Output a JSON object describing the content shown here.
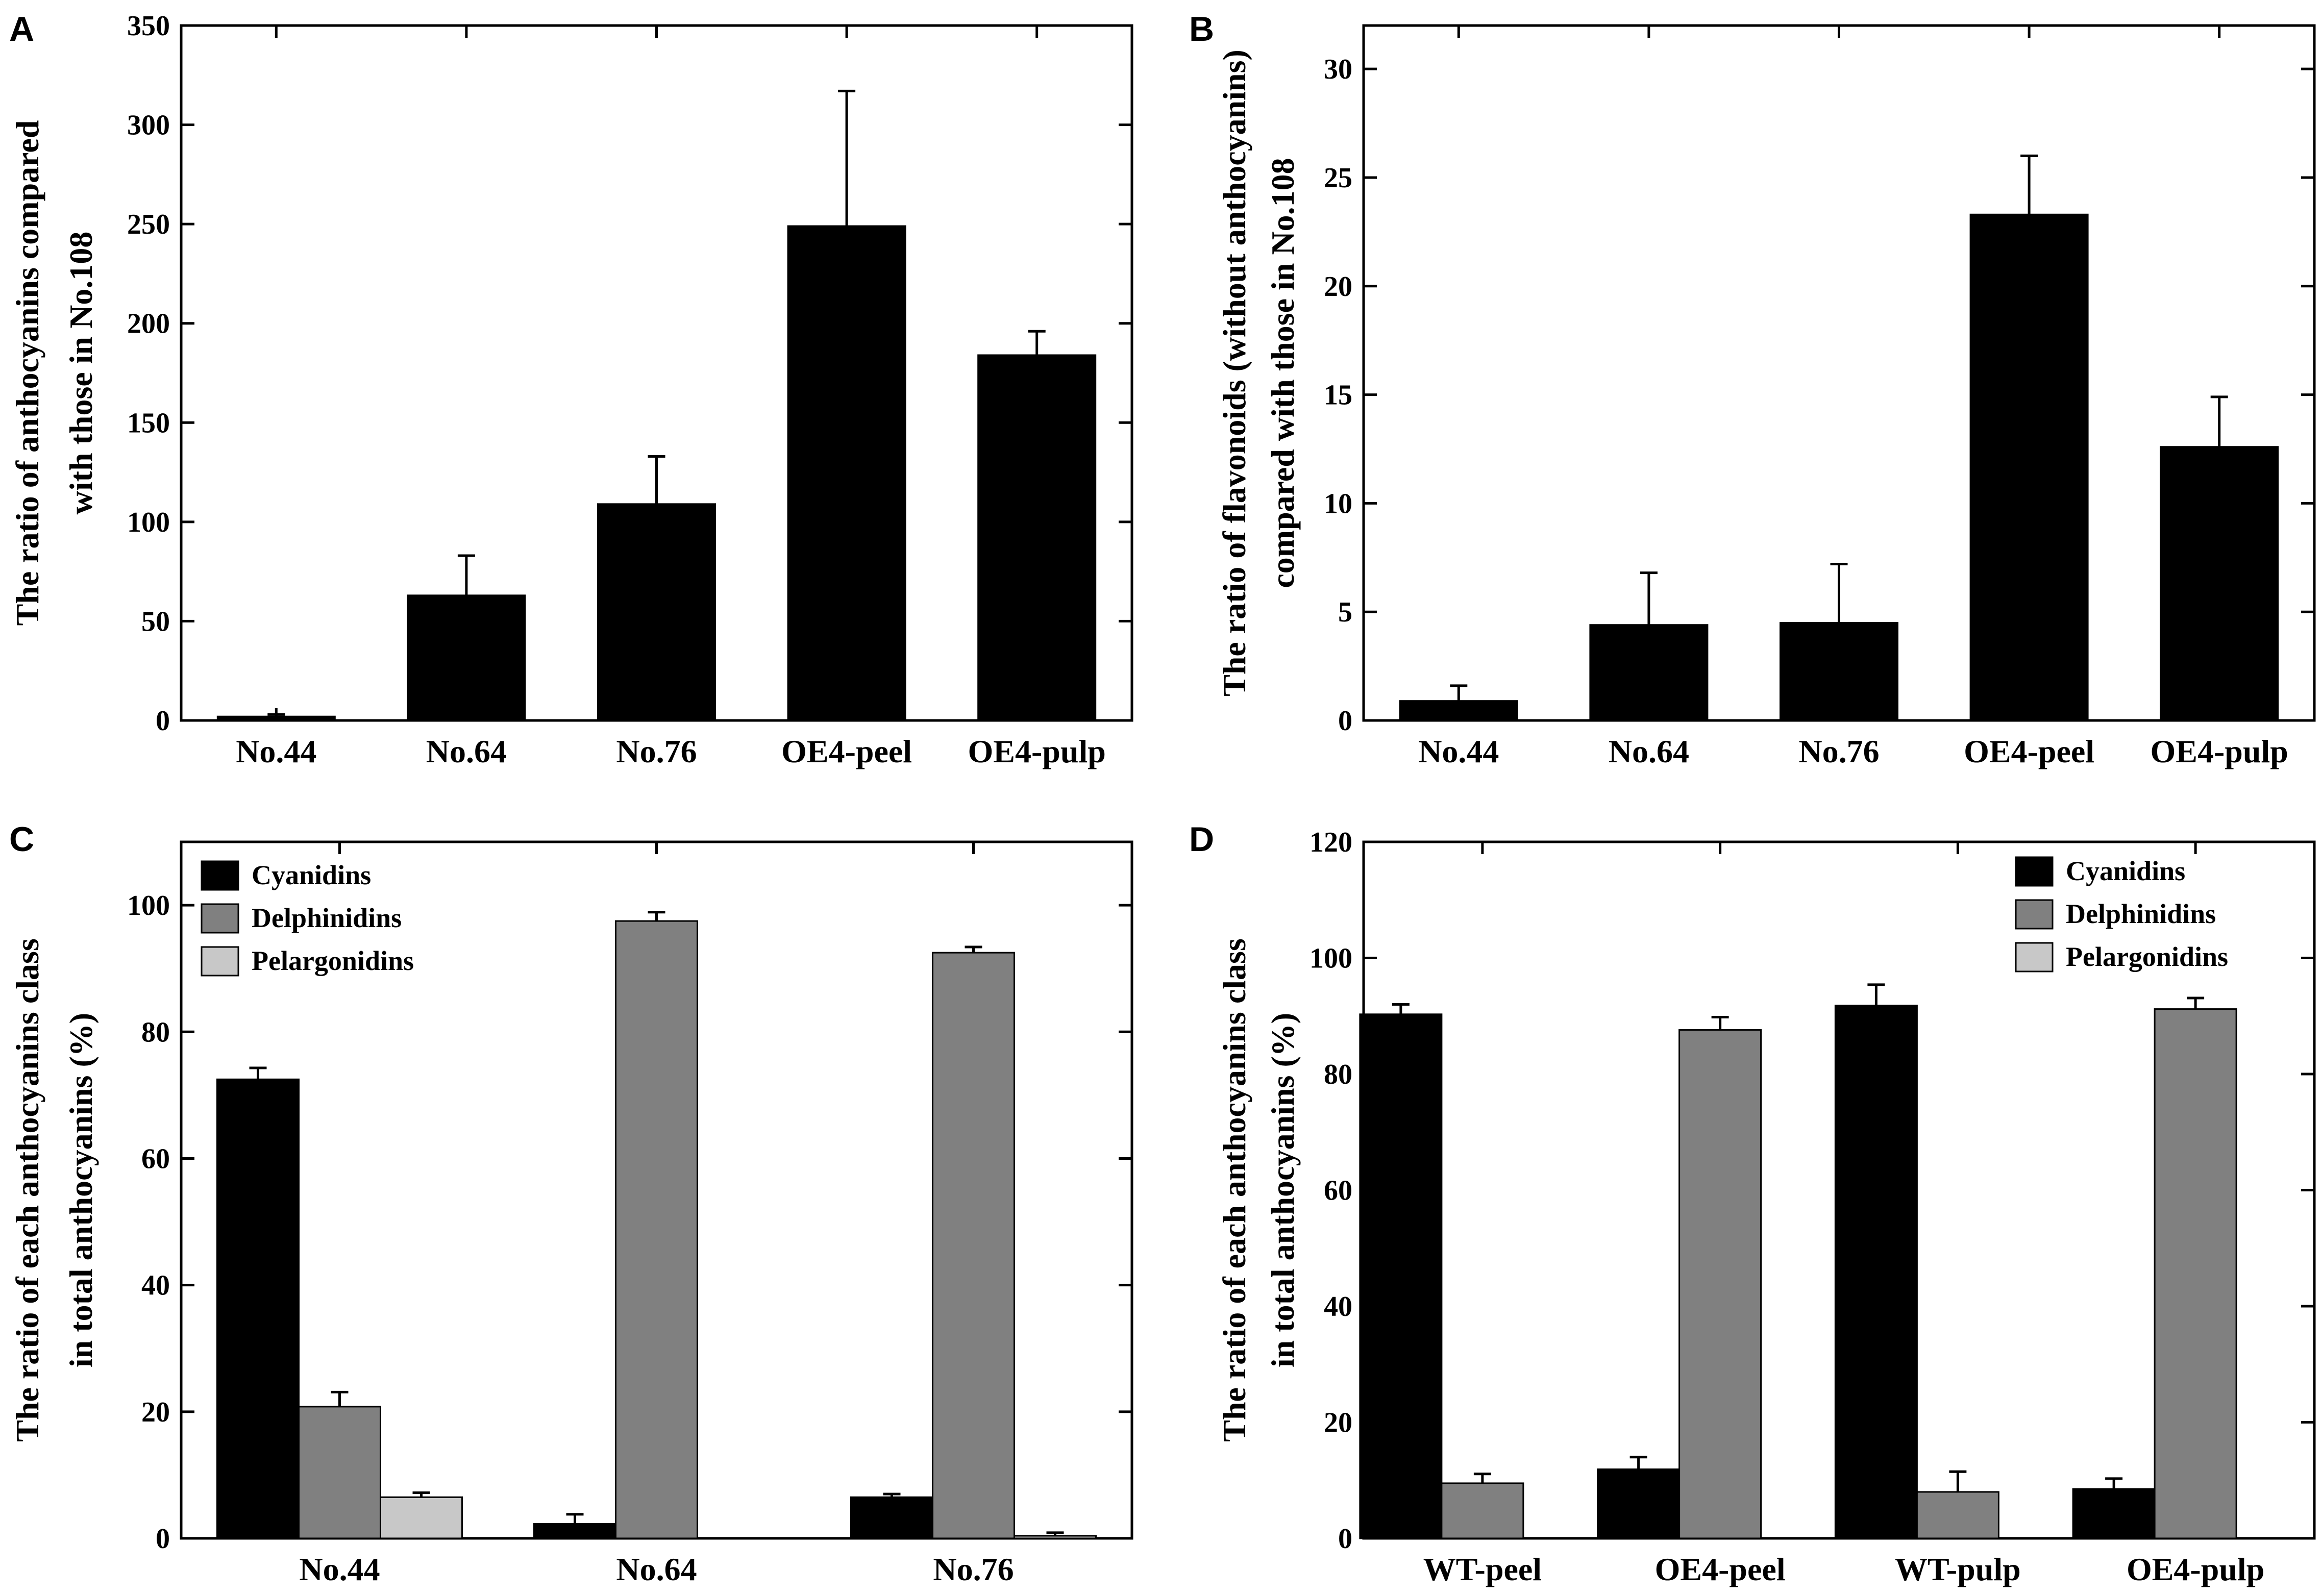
{
  "colors": {
    "black": "#000000",
    "gray": "#808080",
    "light_gray": "#c8c8c8",
    "background": "#ffffff"
  },
  "chart_data": [
    {
      "id": "A",
      "panel_label": "A",
      "type": "bar",
      "categories": [
        "No.44",
        "No.64",
        "No.76",
        "OE4-peel",
        "OE4-pulp"
      ],
      "series": [
        {
          "name": "",
          "color_key": "black",
          "values": [
            2,
            63,
            109,
            249,
            184
          ],
          "errors": [
            1,
            20,
            24,
            68,
            12
          ]
        }
      ],
      "ylabel_lines": [
        "The ratio of anthocyanins compared",
        "with those in No.108"
      ],
      "ylim": [
        0,
        350
      ],
      "yticks": [
        0,
        50,
        100,
        150,
        200,
        250,
        300,
        350
      ],
      "legend": null
    },
    {
      "id": "B",
      "panel_label": "B",
      "type": "bar",
      "categories": [
        "No.44",
        "No.64",
        "No.76",
        "OE4-peel",
        "OE4-pulp"
      ],
      "series": [
        {
          "name": "",
          "color_key": "black",
          "values": [
            0.9,
            4.4,
            4.5,
            23.3,
            12.6
          ],
          "errors": [
            0.7,
            2.4,
            2.7,
            2.7,
            2.3
          ]
        }
      ],
      "ylabel_lines": [
        "The ratio of flavonoids (without anthocyanins)",
        "compared with those in No.108"
      ],
      "ylim": [
        0,
        32
      ],
      "yticks": [
        0,
        5,
        10,
        15,
        20,
        25,
        30
      ],
      "legend": null
    },
    {
      "id": "C",
      "panel_label": "C",
      "type": "bar",
      "categories": [
        "No.44",
        "No.64",
        "No.76"
      ],
      "series": [
        {
          "name": "Cyanidins",
          "color_key": "black",
          "values": [
            72.5,
            2.3,
            6.5
          ],
          "errors": [
            1.8,
            1.5,
            0.5
          ]
        },
        {
          "name": "Delphinidins",
          "color_key": "gray",
          "values": [
            20.8,
            97.5,
            92.5
          ],
          "errors": [
            2.3,
            1.4,
            0.9
          ]
        },
        {
          "name": "Pelargonidins",
          "color_key": "light_gray",
          "values": [
            6.5,
            0,
            0.4
          ],
          "errors": [
            0.7,
            0,
            0.5
          ]
        }
      ],
      "ylabel_lines": [
        "The ratio of each anthocyanins class",
        "in total anthocyanins (%)"
      ],
      "ylim": [
        0,
        110
      ],
      "yticks": [
        0,
        20,
        40,
        60,
        80,
        100
      ],
      "legend": "top-left"
    },
    {
      "id": "D",
      "panel_label": "D",
      "type": "bar",
      "categories": [
        "WT-peel",
        "OE4-peel",
        "WT-pulp",
        "OE4-pulp"
      ],
      "series": [
        {
          "name": "Cyanidins",
          "color_key": "black",
          "values": [
            90.3,
            11.9,
            91.8,
            8.5
          ],
          "errors": [
            1.7,
            2.1,
            3.6,
            1.8
          ]
        },
        {
          "name": "Delphinidins",
          "color_key": "gray",
          "values": [
            9.5,
            87.6,
            8.0,
            91.2
          ],
          "errors": [
            1.6,
            2.2,
            3.5,
            1.9
          ]
        },
        {
          "name": "Pelargonidins",
          "color_key": "light_gray",
          "values": [
            0,
            0,
            0,
            0
          ],
          "errors": [
            0,
            0,
            0,
            0
          ]
        }
      ],
      "ylabel_lines": [
        "The ratio of each anthocyanins class",
        "in total anthocyanins (%)"
      ],
      "ylim": [
        0,
        120
      ],
      "yticks": [
        0,
        20,
        40,
        60,
        80,
        100,
        120
      ],
      "legend": "top-right"
    }
  ]
}
